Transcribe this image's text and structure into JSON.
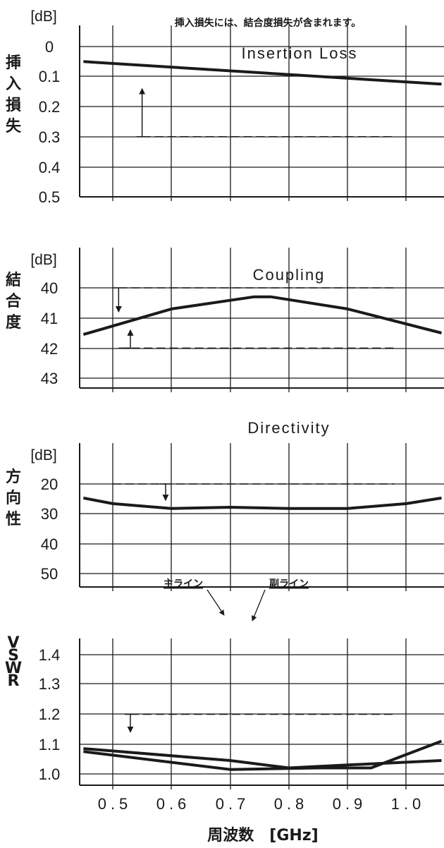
{
  "chart_data": [
    {
      "type": "line",
      "key": "insertion_loss",
      "title": "Insertion Loss",
      "ylabel": "挿入損失",
      "unit": "[dB]",
      "note": "挿入損失には、結合度損失が含まれます。",
      "y_ticks": [
        "0",
        "0.1",
        "0.2",
        "0.3",
        "0.4",
        "0.5"
      ],
      "ylim": [
        0,
        0.5
      ],
      "y_inverted": true,
      "xlim": [
        0.45,
        1.06
      ],
      "series": [
        {
          "x": [
            0.45,
            1.06
          ],
          "y": [
            0.05,
            0.125
          ]
        }
      ],
      "spec_lines": [
        {
          "y": 0.3,
          "x_range": [
            0.55,
            0.98
          ]
        }
      ],
      "arrows": [
        {
          "x": 0.55,
          "from": 0.3,
          "to": 0.14
        }
      ]
    },
    {
      "type": "line",
      "key": "coupling",
      "title": "Coupling",
      "ylabel": "結合度",
      "unit": "[dB]",
      "y_ticks": [
        "40",
        "41",
        "42",
        "43"
      ],
      "ylim": [
        39,
        43
      ],
      "y_inverted": true,
      "xlim": [
        0.45,
        1.06
      ],
      "series": [
        {
          "x": [
            0.45,
            0.6,
            0.74,
            0.77,
            0.9,
            1.06
          ],
          "y": [
            41.55,
            40.7,
            40.3,
            40.3,
            40.7,
            41.5
          ]
        }
      ],
      "spec_lines": [
        {
          "y": 40.0,
          "x_range": [
            0.51,
            0.98
          ]
        },
        {
          "y": 42.0,
          "x_range": [
            0.51,
            0.98
          ]
        }
      ],
      "arrows": [
        {
          "x": 0.51,
          "from": 40.0,
          "to": 40.8
        },
        {
          "x": 0.53,
          "from": 42.0,
          "to": 41.4
        }
      ]
    },
    {
      "type": "line",
      "key": "directivity",
      "title": "Directivity",
      "ylabel": "方向性",
      "unit": "[dB]",
      "y_ticks": [
        "20",
        "30",
        "40",
        "50"
      ],
      "ylim": [
        10,
        55
      ],
      "y_inverted": true,
      "xlim": [
        0.45,
        1.06
      ],
      "series": [
        {
          "x": [
            0.45,
            0.5,
            0.6,
            0.7,
            0.8,
            0.9,
            1.0,
            1.06
          ],
          "y": [
            24.7,
            26.6,
            28.2,
            27.8,
            28.2,
            28.2,
            26.6,
            24.7
          ]
        }
      ],
      "spec_lines": [
        {
          "y": 20.0,
          "x_range": [
            0.5,
            0.98
          ]
        }
      ],
      "arrows": [
        {
          "x": 0.59,
          "from": 20.0,
          "to": 25.5
        }
      ]
    },
    {
      "type": "line",
      "key": "vswr",
      "title": "",
      "ylabel": "VSWR",
      "unit": "",
      "y_ticks": [
        "1.4",
        "1.3",
        "1.2",
        "1.1",
        "1.0"
      ],
      "ylim": [
        0.98,
        1.44
      ],
      "y_inverted": false,
      "xlim": [
        0.45,
        1.06
      ],
      "series": [
        {
          "name": "主ライン",
          "x": [
            0.45,
            0.7,
            0.8,
            0.9,
            1.06
          ],
          "y": [
            1.085,
            1.045,
            1.02,
            1.03,
            1.045
          ]
        },
        {
          "name": "副ライン",
          "x": [
            0.45,
            0.7,
            0.85,
            0.94,
            1.06
          ],
          "y": [
            1.075,
            1.015,
            1.02,
            1.02,
            1.11
          ]
        }
      ],
      "spec_lines": [
        {
          "y": 1.2,
          "x_range": [
            0.53,
            0.98
          ]
        }
      ],
      "arrows": [
        {
          "x": 0.53,
          "from": 1.2,
          "to": 1.14
        }
      ],
      "x_ticks": [
        "0.5",
        "0.6",
        "0.7",
        "0.8",
        "0.9",
        "1.0"
      ],
      "xlabel": "周波数　[GHz]"
    }
  ],
  "colors": {
    "line": "#1a1a1a",
    "grid": "#1a1a1a"
  }
}
